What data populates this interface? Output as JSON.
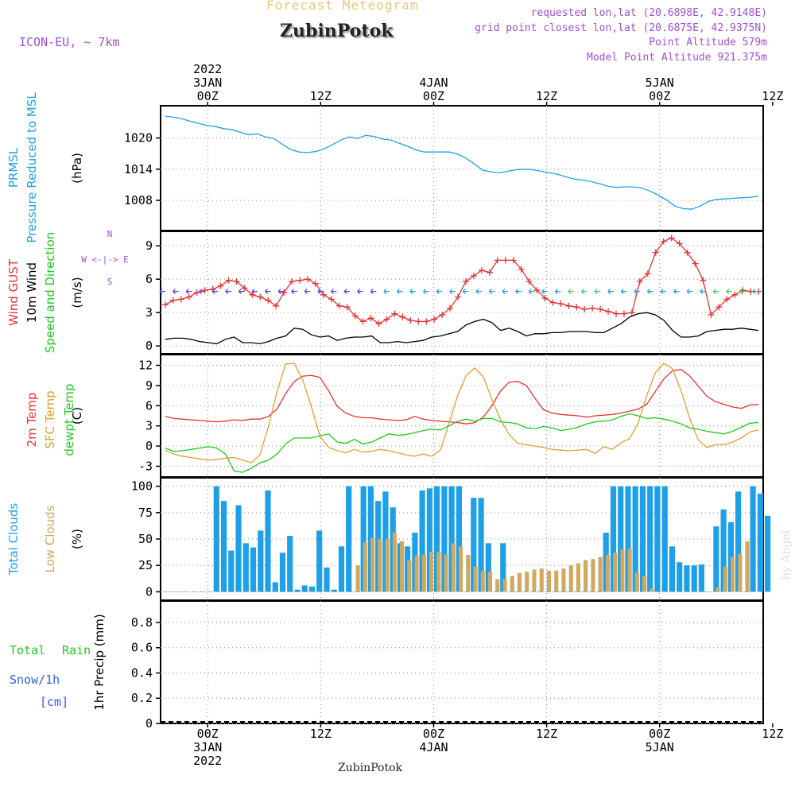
{
  "header": {
    "title": "Forecast Meteogram",
    "station": "ZubinPotok",
    "model": "ICON-EU, ~ 7km",
    "requested": "requested lon,lat (20.6898E, 42.9148E)",
    "closest": "grid point closest lon,lat (20.6875E, 42.9375N)",
    "altitude": "Point Altitude 579m",
    "model_altitude": "Model Point Altitude 921.375m",
    "footer": "ZubinPotok",
    "credit": "by Angel"
  },
  "colors": {
    "pressure": "#1ea0e8",
    "gust": "#e83232",
    "wind": "#000000",
    "temp2m": "#e83232",
    "sfc": "#e0a030",
    "dewpt": "#20c820",
    "total_clouds": "#1ea0e8",
    "low_clouds": "#d0a860",
    "rain": "#20c820",
    "snow": "#3060e0"
  },
  "chart_data": [
    {
      "type": "line",
      "panel": "pressure",
      "ylabel": [
        "PRMSL",
        "Pressure Reduced to MSL"
      ],
      "units": "(hPa)",
      "yticks": [
        1008,
        1014,
        1020
      ],
      "ylim": [
        1002.2,
        1026.2
      ],
      "x_hours_start": -5,
      "x_hours_step": 1.5,
      "xlim": [
        -5,
        59
      ],
      "series": [
        {
          "name": "PRMSL",
          "values": [
            1024.2,
            1024.0,
            1023.7,
            1023.2,
            1022.8,
            1022.4,
            1022.2,
            1021.8,
            1021.6,
            1021.1,
            1020.6,
            1020.8,
            1020.2,
            1019.9,
            1018.8,
            1017.8,
            1017.3,
            1017.2,
            1017.4,
            1017.9,
            1018.7,
            1019.6,
            1020.2,
            1019.9,
            1020.5,
            1020.3,
            1019.8,
            1019.6,
            1019.0,
            1018.4,
            1017.7,
            1017.3,
            1017.3,
            1017.3,
            1017.3,
            1016.9,
            1016.1,
            1015.0,
            1013.8,
            1013.5,
            1013.3,
            1013.6,
            1013.9,
            1014.0,
            1013.9,
            1013.6,
            1013.3,
            1013.0,
            1012.5,
            1012.1,
            1011.9,
            1011.6,
            1011.2,
            1010.7,
            1010.5,
            1010.6,
            1010.6,
            1010.4,
            1009.8,
            1009.0,
            1008.1,
            1006.9,
            1006.4,
            1006.3,
            1006.9,
            1007.8,
            1008.2,
            1008.3,
            1008.4,
            1008.5,
            1008.6,
            1008.8
          ]
        }
      ]
    },
    {
      "type": "line",
      "panel": "wind",
      "ylabel": [
        "Wind GUST",
        "10m Wind",
        "Speed and Direction"
      ],
      "units": "(m/s)",
      "compass": "N / W <-|-> E / S",
      "yticks": [
        0,
        3,
        6,
        9
      ],
      "ylim": [
        -0.7,
        10.3
      ],
      "series": [
        {
          "name": "Wind GUST",
          "values": [
            3.7,
            4.1,
            4.2,
            4.4,
            4.8,
            5.0,
            5.1,
            5.4,
            5.9,
            5.8,
            5.2,
            4.6,
            4.4,
            4.1,
            3.6,
            4.8,
            5.8,
            5.9,
            6.0,
            5.6,
            4.6,
            4.2,
            3.6,
            3.5,
            2.7,
            2.2,
            2.5,
            2.0,
            2.4,
            2.9,
            2.6,
            2.3,
            2.2,
            2.2,
            2.4,
            2.8,
            3.4,
            4.4,
            5.8,
            6.3,
            6.8,
            6.6,
            7.7,
            7.7,
            7.7,
            6.9,
            5.8,
            5.0,
            4.3,
            3.9,
            3.8,
            3.6,
            3.5,
            3.3,
            3.4,
            3.3,
            3.1,
            2.9,
            2.9,
            3.0,
            5.8,
            6.5,
            8.4,
            9.4,
            9.7,
            9.2,
            8.4,
            7.4,
            5.9,
            2.8,
            3.5,
            4.2,
            4.6,
            5.0,
            4.9,
            4.9
          ]
        },
        {
          "name": "10m Wind",
          "values": [
            0.6,
            0.7,
            0.7,
            0.6,
            0.4,
            0.3,
            0.2,
            0.6,
            0.8,
            0.3,
            0.3,
            0.2,
            0.4,
            0.7,
            0.9,
            1.6,
            1.5,
            1.0,
            0.8,
            0.9,
            0.5,
            0.7,
            0.8,
            0.8,
            0.9,
            0.3,
            0.3,
            0.4,
            0.3,
            0.4,
            0.5,
            0.8,
            0.9,
            1.1,
            1.3,
            1.9,
            2.2,
            2.4,
            2.1,
            1.4,
            1.6,
            1.3,
            0.9,
            1.1,
            1.1,
            1.2,
            1.2,
            1.3,
            1.3,
            1.3,
            1.2,
            1.2,
            1.6,
            2.0,
            2.6,
            2.9,
            3.0,
            2.8,
            2.3,
            1.4,
            0.8,
            0.8,
            0.9,
            1.3,
            1.4,
            1.5,
            1.5,
            1.6,
            1.5,
            1.4
          ]
        }
      ]
    },
    {
      "type": "line",
      "panel": "temperature",
      "ylabel": [
        "2m Temp",
        "SFC Temp",
        "dewpt Temp"
      ],
      "units": "(C)",
      "yticks": [
        -3,
        0,
        3,
        6,
        9,
        12
      ],
      "ylim": [
        -4.6,
        13.6
      ],
      "series": [
        {
          "name": "2m Temp",
          "values": [
            4.4,
            4.1,
            4.0,
            3.9,
            3.8,
            3.7,
            3.6,
            3.7,
            3.9,
            3.8,
            4.0,
            4.0,
            4.4,
            5.5,
            7.8,
            9.6,
            10.4,
            10.5,
            10.2,
            8.2,
            5.9,
            4.9,
            4.4,
            4.2,
            4.2,
            4.0,
            3.9,
            3.8,
            3.9,
            4.4,
            4.0,
            3.8,
            3.7,
            3.6,
            3.5,
            3.3,
            3.5,
            4.3,
            6.0,
            8.2,
            9.5,
            9.6,
            9.0,
            7.1,
            5.4,
            4.9,
            4.7,
            4.6,
            4.5,
            4.3,
            4.5,
            4.6,
            4.7,
            4.9,
            5.2,
            5.5,
            6.2,
            8.1,
            10.0,
            11.2,
            11.4,
            10.4,
            8.9,
            7.4,
            6.6,
            6.2,
            5.8,
            5.6,
            6.1,
            6.2
          ]
        },
        {
          "name": "SFC Temp",
          "values": [
            -0.6,
            -1.2,
            -1.5,
            -1.7,
            -1.9,
            -2.1,
            -2.0,
            -1.8,
            -1.7,
            -2.1,
            -2.5,
            -1.3,
            2.9,
            8.1,
            12.2,
            12.3,
            9.8,
            5.8,
            1.4,
            -0.2,
            -0.7,
            -1.0,
            -0.5,
            -0.9,
            -0.8,
            -0.5,
            -0.7,
            -1.0,
            -1.3,
            -1.5,
            -1.2,
            -1.5,
            -0.6,
            3.4,
            7.5,
            10.5,
            11.6,
            10.3,
            6.9,
            3.9,
            1.7,
            0.4,
            0.2,
            0.0,
            -0.2,
            -0.5,
            -0.6,
            -0.7,
            -0.6,
            -0.5,
            -1.1,
            -0.1,
            -0.5,
            0.5,
            1.1,
            3.4,
            7.5,
            10.9,
            12.3,
            11.5,
            8.2,
            4.1,
            0.9,
            -0.2,
            0.2,
            0.2,
            0.6,
            1.2,
            2.1,
            2.4
          ]
        },
        {
          "name": "dewpt Temp",
          "values": [
            -0.3,
            -0.8,
            -0.7,
            -0.5,
            -0.3,
            -0.1,
            -0.3,
            -1.2,
            -3.7,
            -3.9,
            -3.3,
            -2.5,
            -2.1,
            -1.2,
            0.3,
            1.2,
            1.2,
            1.2,
            1.5,
            1.8,
            0.6,
            0.4,
            1.0,
            0.3,
            0.6,
            1.2,
            1.8,
            1.6,
            1.7,
            2.0,
            2.3,
            2.5,
            2.4,
            3.0,
            3.7,
            4.0,
            3.7,
            4.1,
            4.1,
            3.6,
            3.5,
            3.3,
            2.7,
            2.6,
            2.9,
            2.7,
            2.3,
            2.5,
            2.8,
            3.3,
            3.6,
            3.7,
            3.9,
            4.4,
            4.8,
            4.5,
            4.1,
            4.2,
            4.0,
            3.7,
            3.3,
            2.7,
            2.5,
            2.2,
            2.0,
            1.8,
            2.2,
            2.8,
            3.4,
            3.5
          ]
        }
      ]
    },
    {
      "type": "bar",
      "panel": "clouds",
      "ylabel": [
        "Total Clouds",
        "Low Clouds"
      ],
      "units": "(%)",
      "yticks": [
        0,
        25,
        50,
        75,
        100
      ],
      "ylim": [
        -8,
        108
      ],
      "series": [
        {
          "name": "Total Clouds",
          "values": [
            0,
            0,
            0,
            0,
            0,
            0,
            0,
            100,
            86,
            39,
            82,
            46,
            42,
            58,
            96,
            9,
            37,
            53,
            2,
            6,
            5,
            58,
            23,
            2,
            43,
            100,
            0,
            100,
            100,
            86,
            95,
            80,
            46,
            43,
            56,
            96,
            98,
            100,
            100,
            100,
            100,
            0,
            89,
            89,
            46,
            0,
            46,
            0,
            0,
            0,
            0,
            0,
            0,
            0,
            0,
            0,
            0,
            0,
            0,
            0,
            56,
            100,
            100,
            100,
            100,
            100,
            100,
            100,
            100,
            43,
            28,
            25,
            25,
            26,
            0,
            62,
            78,
            66,
            95,
            0,
            100,
            93,
            72
          ]
        },
        {
          "name": "Low Clouds",
          "values": [
            0,
            0,
            0,
            0,
            0,
            0,
            0,
            0,
            0,
            0,
            0,
            0,
            0,
            0,
            0,
            0,
            0,
            0,
            0,
            0,
            0,
            0,
            0,
            0,
            0,
            0,
            25,
            47,
            51,
            50,
            50,
            56,
            48,
            30,
            34,
            35,
            38,
            38,
            35,
            46,
            43,
            35,
            24,
            20,
            19,
            12,
            12,
            15,
            18,
            19,
            21,
            22,
            20,
            20,
            22,
            25,
            27,
            30,
            31,
            33,
            35,
            37,
            40,
            41,
            18,
            15,
            3,
            0,
            0,
            0,
            0,
            0,
            0,
            0,
            0,
            4,
            24,
            33,
            36,
            48
          ]
        }
      ]
    },
    {
      "type": "line",
      "panel": "precip",
      "ylabel": [
        "Total   Rain",
        "Snow/1h",
        "[cm]"
      ],
      "units": "1hr Precip (mm)",
      "yticks": [
        0,
        0.2,
        0.4,
        0.6,
        0.8
      ],
      "ylim": [
        0,
        0.97
      ],
      "series": [
        {
          "name": "Total Rain",
          "values": []
        },
        {
          "name": "Snow/1h",
          "values": []
        }
      ]
    }
  ],
  "x_axis": {
    "top_labels": [
      {
        "hour": 0,
        "lines": [
          "2022",
          "3JAN",
          "00Z"
        ]
      },
      {
        "hour": 12,
        "lines": [
          "",
          "",
          "12Z"
        ]
      },
      {
        "hour": 24,
        "lines": [
          "",
          "4JAN",
          "00Z"
        ]
      },
      {
        "hour": 36,
        "lines": [
          "",
          "",
          "12Z"
        ]
      },
      {
        "hour": 48,
        "lines": [
          "",
          "5JAN",
          "00Z"
        ]
      },
      {
        "hour": 60,
        "lines": [
          "",
          "",
          "12Z"
        ]
      }
    ],
    "bottom_labels": [
      {
        "hour": 0,
        "lines": [
          "00Z",
          "3JAN",
          "2022"
        ]
      },
      {
        "hour": 12,
        "lines": [
          "12Z",
          "",
          ""
        ]
      },
      {
        "hour": 24,
        "lines": [
          "00Z",
          "4JAN",
          ""
        ]
      },
      {
        "hour": 36,
        "lines": [
          "12Z",
          "",
          ""
        ]
      },
      {
        "hour": 48,
        "lines": [
          "00Z",
          "5JAN",
          ""
        ]
      },
      {
        "hour": 60,
        "lines": [
          "12Z",
          "",
          ""
        ]
      }
    ]
  }
}
